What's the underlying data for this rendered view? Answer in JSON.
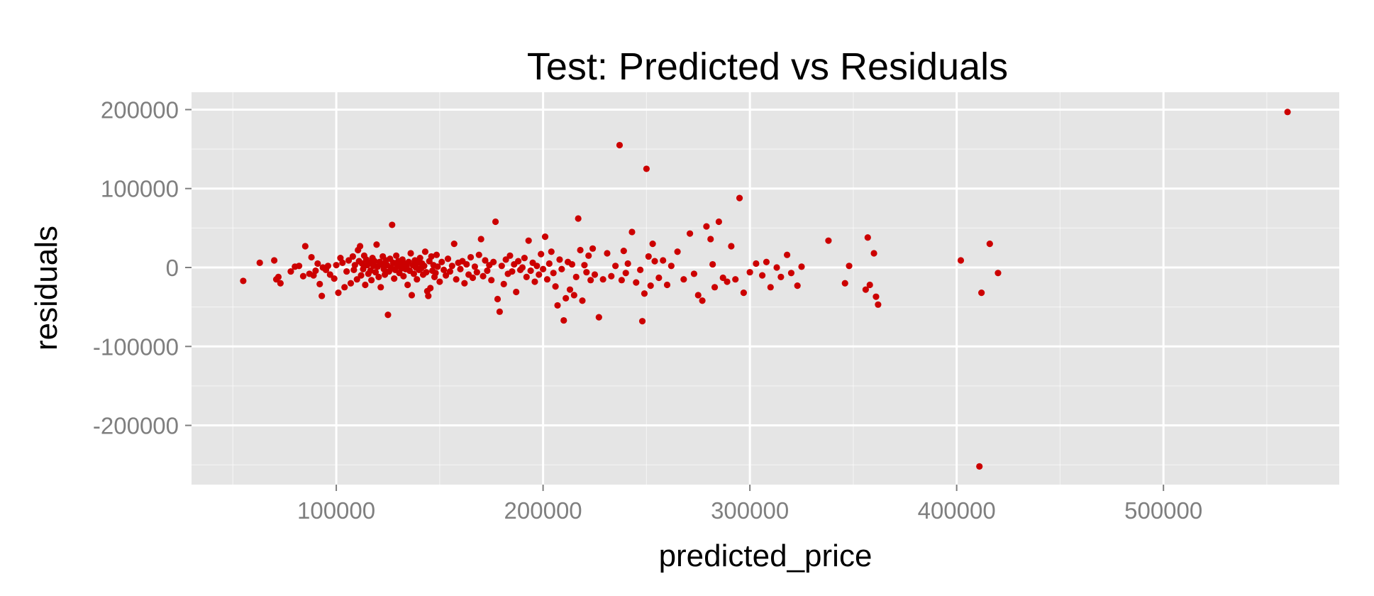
{
  "chart_data": {
    "type": "scatter",
    "title": "Test: Predicted vs Residuals",
    "xlabel": "predicted_price",
    "ylabel": "residuals",
    "xlim": [
      30000,
      585000
    ],
    "ylim": [
      -275000,
      222000
    ],
    "x_ticks": [
      100000,
      200000,
      300000,
      400000,
      500000
    ],
    "y_ticks": [
      -200000,
      -100000,
      0,
      100000,
      200000
    ],
    "x_tick_labels": [
      "100000",
      "200000",
      "300000",
      "400000",
      "500000"
    ],
    "y_tick_labels": [
      "-200000",
      "-100000",
      "0",
      "100000",
      "200000"
    ],
    "grid": true,
    "legend": "none",
    "colors": {
      "points": "#cc0000",
      "panel": "#e5e5e5",
      "grid": "#ffffff",
      "ticks": "#7f7f7f"
    },
    "series": [
      {
        "points": [
          [
            55000,
            -17000
          ],
          [
            63000,
            6000
          ],
          [
            70000,
            9000
          ],
          [
            71000,
            -15000
          ],
          [
            72000,
            -12000
          ],
          [
            73000,
            -20000
          ],
          [
            78000,
            -5000
          ],
          [
            80000,
            1000
          ],
          [
            82000,
            2000
          ],
          [
            84000,
            -11000
          ],
          [
            85000,
            27000
          ],
          [
            87000,
            -8000
          ],
          [
            88000,
            13000
          ],
          [
            89000,
            -10000
          ],
          [
            90000,
            -4000
          ],
          [
            91000,
            5000
          ],
          [
            92000,
            -21000
          ],
          [
            93000,
            -36000
          ],
          [
            93500,
            0
          ],
          [
            95000,
            -3000
          ],
          [
            96000,
            2000
          ],
          [
            97000,
            -9000
          ],
          [
            99000,
            -14000
          ],
          [
            100000,
            3000
          ],
          [
            101000,
            -32000
          ],
          [
            102000,
            12000
          ],
          [
            103000,
            6000
          ],
          [
            104000,
            -25000
          ],
          [
            105000,
            -5000
          ],
          [
            106000,
            9000
          ],
          [
            107000,
            -20000
          ],
          [
            108000,
            14000
          ],
          [
            108500,
            -3000
          ],
          [
            109000,
            3000
          ],
          [
            110000,
            -15000
          ],
          [
            110500,
            22000
          ],
          [
            111000,
            8000
          ],
          [
            111500,
            27000
          ],
          [
            112000,
            -10000
          ],
          [
            112500,
            5000
          ],
          [
            113000,
            -2000
          ],
          [
            113500,
            15000
          ],
          [
            114000,
            -22000
          ],
          [
            114500,
            10000
          ],
          [
            115000,
            3000
          ],
          [
            115500,
            -8000
          ],
          [
            116000,
            6000
          ],
          [
            116500,
            -4000
          ],
          [
            117000,
            -16000
          ],
          [
            117500,
            12000
          ],
          [
            118000,
            2000
          ],
          [
            118500,
            8000
          ],
          [
            119000,
            -6000
          ],
          [
            119500,
            29000
          ],
          [
            120000,
            1000
          ],
          [
            120500,
            -12000
          ],
          [
            121000,
            7000
          ],
          [
            121500,
            -25000
          ],
          [
            122000,
            4000
          ],
          [
            122500,
            14000
          ],
          [
            123000,
            -2000
          ],
          [
            123500,
            -9000
          ],
          [
            124000,
            9000
          ],
          [
            124500,
            3000
          ],
          [
            125000,
            -60000
          ],
          [
            125500,
            -5000
          ],
          [
            126000,
            11000
          ],
          [
            126500,
            0
          ],
          [
            127000,
            54000
          ],
          [
            127500,
            6000
          ],
          [
            128000,
            -14000
          ],
          [
            128500,
            -3000
          ],
          [
            129000,
            15000
          ],
          [
            129500,
            2000
          ],
          [
            130000,
            8000
          ],
          [
            130500,
            -7000
          ],
          [
            131000,
            4000
          ],
          [
            131500,
            -1000
          ],
          [
            132000,
            10000
          ],
          [
            132500,
            -11000
          ],
          [
            133000,
            5000
          ],
          [
            133500,
            -2000
          ],
          [
            134000,
            1000
          ],
          [
            134500,
            -22000
          ],
          [
            135000,
            7000
          ],
          [
            135500,
            -4000
          ],
          [
            136000,
            18000
          ],
          [
            136500,
            -35000
          ],
          [
            137000,
            3000
          ],
          [
            137500,
            -8000
          ],
          [
            138000,
            9000
          ],
          [
            138500,
            0
          ],
          [
            139000,
            -15000
          ],
          [
            139500,
            6000
          ],
          [
            140000,
            -3000
          ],
          [
            140500,
            12000
          ],
          [
            141000,
            -1000
          ],
          [
            141500,
            5000
          ],
          [
            142000,
            -9000
          ],
          [
            142500,
            2000
          ],
          [
            143000,
            20000
          ],
          [
            143500,
            -6000
          ],
          [
            144000,
            -30000
          ],
          [
            144500,
            -36000
          ],
          [
            145000,
            8000
          ],
          [
            145500,
            -26000
          ],
          [
            146000,
            14000
          ],
          [
            146500,
            -4000
          ],
          [
            147000,
            3000
          ],
          [
            147500,
            -12000
          ],
          [
            148000,
            -7000
          ],
          [
            148500,
            16000
          ],
          [
            149000,
            1000
          ],
          [
            150000,
            -18000
          ],
          [
            151000,
            7000
          ],
          [
            152000,
            -3000
          ],
          [
            153000,
            -10000
          ],
          [
            154000,
            11000
          ],
          [
            155000,
            -5000
          ],
          [
            156000,
            2000
          ],
          [
            157000,
            30000
          ],
          [
            158000,
            -15000
          ],
          [
            159000,
            6000
          ],
          [
            160000,
            -2000
          ],
          [
            161000,
            8000
          ],
          [
            162000,
            -20000
          ],
          [
            163000,
            4000
          ],
          [
            164000,
            -9000
          ],
          [
            165000,
            13000
          ],
          [
            166000,
            -13000
          ],
          [
            167000,
            1000
          ],
          [
            168000,
            -6000
          ],
          [
            169000,
            16000
          ],
          [
            170000,
            36000
          ],
          [
            171000,
            -11000
          ],
          [
            172000,
            9000
          ],
          [
            173000,
            -4000
          ],
          [
            174000,
            3000
          ],
          [
            175000,
            -16000
          ],
          [
            176000,
            7000
          ],
          [
            177000,
            58000
          ],
          [
            178000,
            -40000
          ],
          [
            179000,
            -56000
          ],
          [
            180000,
            2000
          ],
          [
            181000,
            -21000
          ],
          [
            182000,
            10000
          ],
          [
            183000,
            -8000
          ],
          [
            184000,
            15000
          ],
          [
            185000,
            -5000
          ],
          [
            186000,
            4000
          ],
          [
            187000,
            -31000
          ],
          [
            188000,
            8000
          ],
          [
            189000,
            -3000
          ],
          [
            190000,
            0
          ],
          [
            191000,
            12000
          ],
          [
            192000,
            -12000
          ],
          [
            193000,
            34000
          ],
          [
            194000,
            -4000
          ],
          [
            195000,
            6000
          ],
          [
            196000,
            -18000
          ],
          [
            197000,
            2000
          ],
          [
            198000,
            -9000
          ],
          [
            199000,
            17000
          ],
          [
            200000,
            -2000
          ],
          [
            201000,
            39000
          ],
          [
            202000,
            -15000
          ],
          [
            203000,
            5000
          ],
          [
            204000,
            20000
          ],
          [
            205000,
            -7000
          ],
          [
            206000,
            -24000
          ],
          [
            207000,
            -48000
          ],
          [
            208000,
            10000
          ],
          [
            209000,
            -2000
          ],
          [
            210000,
            -67000
          ],
          [
            211000,
            -39000
          ],
          [
            212000,
            7000
          ],
          [
            213000,
            -28000
          ],
          [
            214000,
            4000
          ],
          [
            215000,
            -35000
          ],
          [
            216000,
            -12000
          ],
          [
            217000,
            62000
          ],
          [
            218000,
            22000
          ],
          [
            219000,
            -42000
          ],
          [
            220000,
            3000
          ],
          [
            221000,
            -6000
          ],
          [
            222000,
            15000
          ],
          [
            223000,
            -16000
          ],
          [
            224000,
            24000
          ],
          [
            225000,
            -9000
          ],
          [
            227000,
            -63000
          ],
          [
            229000,
            -15000
          ],
          [
            231000,
            18000
          ],
          [
            233000,
            -11000
          ],
          [
            235000,
            2000
          ],
          [
            237000,
            155000
          ],
          [
            238000,
            -16000
          ],
          [
            239000,
            21000
          ],
          [
            240000,
            -7000
          ],
          [
            241000,
            5000
          ],
          [
            243000,
            45000
          ],
          [
            245000,
            -19000
          ],
          [
            247000,
            -3000
          ],
          [
            248000,
            -68000
          ],
          [
            249000,
            -33000
          ],
          [
            250000,
            125000
          ],
          [
            251000,
            14000
          ],
          [
            252000,
            -23000
          ],
          [
            253000,
            30000
          ],
          [
            254000,
            8000
          ],
          [
            256000,
            -13000
          ],
          [
            258000,
            9000
          ],
          [
            260000,
            -22000
          ],
          [
            262000,
            2000
          ],
          [
            265000,
            20000
          ],
          [
            268000,
            -15000
          ],
          [
            271000,
            43000
          ],
          [
            273000,
            -8000
          ],
          [
            275000,
            -35000
          ],
          [
            277000,
            -42000
          ],
          [
            279000,
            52000
          ],
          [
            281000,
            36000
          ],
          [
            282000,
            4000
          ],
          [
            283000,
            -25000
          ],
          [
            285000,
            58000
          ],
          [
            287000,
            -13000
          ],
          [
            289000,
            -18000
          ],
          [
            291000,
            27000
          ],
          [
            293000,
            -15000
          ],
          [
            295000,
            88000
          ],
          [
            297000,
            -32000
          ],
          [
            300000,
            -6000
          ],
          [
            303000,
            5000
          ],
          [
            306000,
            -10000
          ],
          [
            308000,
            7000
          ],
          [
            310000,
            -25000
          ],
          [
            313000,
            0
          ],
          [
            315000,
            -12000
          ],
          [
            318000,
            16000
          ],
          [
            320000,
            -7000
          ],
          [
            323000,
            -23000
          ],
          [
            325000,
            1000
          ],
          [
            338000,
            34000
          ],
          [
            346000,
            -20000
          ],
          [
            348000,
            2000
          ],
          [
            356000,
            -28000
          ],
          [
            357000,
            38000
          ],
          [
            358000,
            -22000
          ],
          [
            360000,
            18000
          ],
          [
            361000,
            -37000
          ],
          [
            362000,
            -47000
          ],
          [
            402000,
            9000
          ],
          [
            411000,
            -252000
          ],
          [
            412000,
            -32000
          ],
          [
            416000,
            30000
          ],
          [
            420000,
            -7000
          ],
          [
            560000,
            197000
          ]
        ]
      }
    ]
  }
}
